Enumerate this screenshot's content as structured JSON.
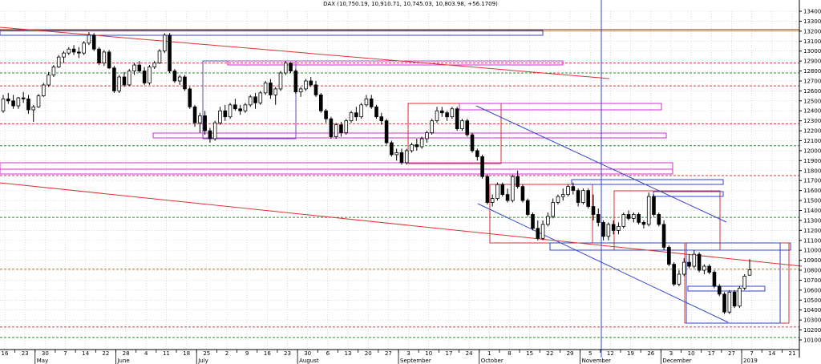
{
  "chart_data": {
    "type": "candlestick",
    "title": "DAX (10,750.19, 10,910.71, 10,745.03, 10,803.98, +56.1709)",
    "ylim": [
      10000,
      13450
    ],
    "y_ticks": [
      10100,
      10200,
      10300,
      10400,
      10500,
      10600,
      10700,
      10800,
      10900,
      11000,
      11100,
      11200,
      11300,
      11400,
      11500,
      11600,
      11700,
      11800,
      11900,
      12000,
      12100,
      12200,
      12300,
      12400,
      12500,
      12600,
      12700,
      12800,
      12900,
      13000,
      13100,
      13200,
      13300,
      13400
    ],
    "x_day_labels": [
      "16",
      "23",
      "30",
      "7",
      "14",
      "22",
      "28",
      "4",
      "11",
      "18",
      "25",
      "2",
      "9",
      "16",
      "23",
      "30",
      "6",
      "13",
      "20",
      "27",
      "3",
      "10",
      "17",
      "24",
      "1",
      "8",
      "15",
      "22",
      "29",
      "5",
      "12",
      "19",
      "26",
      "3",
      "10",
      "17",
      "27",
      "7",
      "14",
      "21"
    ],
    "x_month_labels": [
      "May",
      "June",
      "July",
      "August",
      "September",
      "October",
      "November",
      "December",
      "2019"
    ],
    "grid": "dotted",
    "horizontal_levels": [
      {
        "y": 13215,
        "color": "#7a3a1e"
      },
      {
        "y": 13200,
        "color": "#d4a84e"
      },
      {
        "y": 12880,
        "color": "#d43a3a"
      },
      {
        "y": 12780,
        "color": "#2e8b2e"
      },
      {
        "y": 12650,
        "color": "#d43a3a"
      },
      {
        "y": 12270,
        "color": "#d43a3a"
      },
      {
        "y": 12050,
        "color": "#2e8b2e"
      },
      {
        "y": 11750,
        "color": "#d43a3a"
      },
      {
        "y": 11330,
        "color": "#2e8b2e"
      },
      {
        "y": 10810,
        "color": "#c2741a"
      },
      {
        "y": 10230,
        "color": "#d43a3a"
      },
      {
        "y": 10125,
        "color": "#2e8b2e"
      }
    ],
    "candles": [
      {
        "o": 12400,
        "h": 12560,
        "l": 12380,
        "c": 12520
      },
      {
        "o": 12520,
        "h": 12580,
        "l": 12470,
        "c": 12500
      },
      {
        "o": 12500,
        "h": 12560,
        "l": 12420,
        "c": 12450
      },
      {
        "o": 12450,
        "h": 12540,
        "l": 12420,
        "c": 12530
      },
      {
        "o": 12530,
        "h": 12590,
        "l": 12480,
        "c": 12520
      },
      {
        "o": 12520,
        "h": 12560,
        "l": 12370,
        "c": 12410
      },
      {
        "o": 12410,
        "h": 12460,
        "l": 12290,
        "c": 12440
      },
      {
        "o": 12440,
        "h": 12570,
        "l": 12430,
        "c": 12550
      },
      {
        "o": 12550,
        "h": 12680,
        "l": 12540,
        "c": 12660
      },
      {
        "o": 12660,
        "h": 12790,
        "l": 12640,
        "c": 12760
      },
      {
        "o": 12760,
        "h": 12860,
        "l": 12740,
        "c": 12840
      },
      {
        "o": 12840,
        "h": 12960,
        "l": 12830,
        "c": 12940
      },
      {
        "o": 12940,
        "h": 13000,
        "l": 12880,
        "c": 12980
      },
      {
        "o": 12980,
        "h": 13040,
        "l": 12960,
        "c": 13020
      },
      {
        "o": 13020,
        "h": 13060,
        "l": 12960,
        "c": 12990
      },
      {
        "o": 12990,
        "h": 13040,
        "l": 12930,
        "c": 12980
      },
      {
        "o": 12980,
        "h": 13100,
        "l": 12960,
        "c": 13080
      },
      {
        "o": 13080,
        "h": 13190,
        "l": 13060,
        "c": 13160
      },
      {
        "o": 13160,
        "h": 13180,
        "l": 13000,
        "c": 13020
      },
      {
        "o": 13020,
        "h": 13040,
        "l": 12860,
        "c": 12880
      },
      {
        "o": 12880,
        "h": 13010,
        "l": 12850,
        "c": 12990
      },
      {
        "o": 12990,
        "h": 13010,
        "l": 12820,
        "c": 12830
      },
      {
        "o": 12830,
        "h": 12850,
        "l": 12580,
        "c": 12600
      },
      {
        "o": 12600,
        "h": 12760,
        "l": 12580,
        "c": 12740
      },
      {
        "o": 12740,
        "h": 12790,
        "l": 12640,
        "c": 12660
      },
      {
        "o": 12660,
        "h": 12820,
        "l": 12650,
        "c": 12800
      },
      {
        "o": 12800,
        "h": 12880,
        "l": 12760,
        "c": 12860
      },
      {
        "o": 12860,
        "h": 12900,
        "l": 12780,
        "c": 12800
      },
      {
        "o": 12800,
        "h": 12840,
        "l": 12660,
        "c": 12680
      },
      {
        "o": 12680,
        "h": 12860,
        "l": 12660,
        "c": 12840
      },
      {
        "o": 12840,
        "h": 12900,
        "l": 12820,
        "c": 12880
      },
      {
        "o": 12880,
        "h": 13020,
        "l": 12870,
        "c": 13000
      },
      {
        "o": 13000,
        "h": 13180,
        "l": 12980,
        "c": 13160
      },
      {
        "o": 13160,
        "h": 13180,
        "l": 12780,
        "c": 12800
      },
      {
        "o": 12800,
        "h": 12820,
        "l": 12680,
        "c": 12700
      },
      {
        "o": 12700,
        "h": 12760,
        "l": 12660,
        "c": 12740
      },
      {
        "o": 12740,
        "h": 12760,
        "l": 12600,
        "c": 12620
      },
      {
        "o": 12620,
        "h": 12640,
        "l": 12420,
        "c": 12440
      },
      {
        "o": 12440,
        "h": 12460,
        "l": 12240,
        "c": 12280
      },
      {
        "o": 12280,
        "h": 12380,
        "l": 12180,
        "c": 12350
      },
      {
        "o": 12350,
        "h": 12400,
        "l": 12160,
        "c": 12200
      },
      {
        "o": 12200,
        "h": 12230,
        "l": 12080,
        "c": 12120
      },
      {
        "o": 12120,
        "h": 12300,
        "l": 12100,
        "c": 12280
      },
      {
        "o": 12280,
        "h": 12440,
        "l": 12260,
        "c": 12400
      },
      {
        "o": 12400,
        "h": 12460,
        "l": 12300,
        "c": 12340
      },
      {
        "o": 12340,
        "h": 12480,
        "l": 12320,
        "c": 12460
      },
      {
        "o": 12460,
        "h": 12520,
        "l": 12400,
        "c": 12420
      },
      {
        "o": 12420,
        "h": 12460,
        "l": 12360,
        "c": 12400
      },
      {
        "o": 12400,
        "h": 12480,
        "l": 12380,
        "c": 12460
      },
      {
        "o": 12460,
        "h": 12560,
        "l": 12440,
        "c": 12540
      },
      {
        "o": 12540,
        "h": 12580,
        "l": 12420,
        "c": 12480
      },
      {
        "o": 12480,
        "h": 12600,
        "l": 12460,
        "c": 12580
      },
      {
        "o": 12580,
        "h": 12700,
        "l": 12560,
        "c": 12680
      },
      {
        "o": 12680,
        "h": 12720,
        "l": 12520,
        "c": 12560
      },
      {
        "o": 12560,
        "h": 12640,
        "l": 12460,
        "c": 12620
      },
      {
        "o": 12620,
        "h": 12800,
        "l": 12600,
        "c": 12780
      },
      {
        "o": 12780,
        "h": 12900,
        "l": 12760,
        "c": 12880
      },
      {
        "o": 12880,
        "h": 12890,
        "l": 12780,
        "c": 12800
      },
      {
        "o": 12800,
        "h": 12820,
        "l": 12570,
        "c": 12590
      },
      {
        "o": 12590,
        "h": 12640,
        "l": 12540,
        "c": 12620
      },
      {
        "o": 12620,
        "h": 12720,
        "l": 12600,
        "c": 12700
      },
      {
        "o": 12700,
        "h": 12740,
        "l": 12640,
        "c": 12660
      },
      {
        "o": 12660,
        "h": 12700,
        "l": 12540,
        "c": 12560
      },
      {
        "o": 12560,
        "h": 12580,
        "l": 12380,
        "c": 12400
      },
      {
        "o": 12400,
        "h": 12420,
        "l": 12280,
        "c": 12320
      },
      {
        "o": 12320,
        "h": 12340,
        "l": 12120,
        "c": 12140
      },
      {
        "o": 12140,
        "h": 12280,
        "l": 12120,
        "c": 12260
      },
      {
        "o": 12260,
        "h": 12290,
        "l": 12140,
        "c": 12180
      },
      {
        "o": 12180,
        "h": 12320,
        "l": 12160,
        "c": 12300
      },
      {
        "o": 12300,
        "h": 12400,
        "l": 12280,
        "c": 12380
      },
      {
        "o": 12380,
        "h": 12440,
        "l": 12300,
        "c": 12340
      },
      {
        "o": 12340,
        "h": 12480,
        "l": 12320,
        "c": 12460
      },
      {
        "o": 12460,
        "h": 12560,
        "l": 12440,
        "c": 12520
      },
      {
        "o": 12520,
        "h": 12560,
        "l": 12420,
        "c": 12440
      },
      {
        "o": 12440,
        "h": 12460,
        "l": 12320,
        "c": 12340
      },
      {
        "o": 12340,
        "h": 12380,
        "l": 12260,
        "c": 12300
      },
      {
        "o": 12300,
        "h": 12320,
        "l": 12060,
        "c": 12080
      },
      {
        "o": 12080,
        "h": 12100,
        "l": 11940,
        "c": 11960
      },
      {
        "o": 11960,
        "h": 12020,
        "l": 11900,
        "c": 11980
      },
      {
        "o": 11980,
        "h": 12020,
        "l": 11860,
        "c": 11880
      },
      {
        "o": 11880,
        "h": 12020,
        "l": 11860,
        "c": 12000
      },
      {
        "o": 12000,
        "h": 12080,
        "l": 11980,
        "c": 12060
      },
      {
        "o": 12060,
        "h": 12120,
        "l": 12000,
        "c": 12040
      },
      {
        "o": 12040,
        "h": 12140,
        "l": 12020,
        "c": 12120
      },
      {
        "o": 12120,
        "h": 12200,
        "l": 12080,
        "c": 12180
      },
      {
        "o": 12180,
        "h": 12320,
        "l": 12160,
        "c": 12300
      },
      {
        "o": 12300,
        "h": 12440,
        "l": 12280,
        "c": 12400
      },
      {
        "o": 12400,
        "h": 12440,
        "l": 12340,
        "c": 12380
      },
      {
        "o": 12380,
        "h": 12400,
        "l": 12300,
        "c": 12340
      },
      {
        "o": 12340,
        "h": 12440,
        "l": 12320,
        "c": 12420
      },
      {
        "o": 12420,
        "h": 12440,
        "l": 12200,
        "c": 12220
      },
      {
        "o": 12220,
        "h": 12320,
        "l": 12200,
        "c": 12300
      },
      {
        "o": 12300,
        "h": 12320,
        "l": 12140,
        "c": 12160
      },
      {
        "o": 12160,
        "h": 12180,
        "l": 11980,
        "c": 12000
      },
      {
        "o": 12000,
        "h": 12020,
        "l": 11900,
        "c": 11940
      },
      {
        "o": 11940,
        "h": 11960,
        "l": 11720,
        "c": 11740
      },
      {
        "o": 11740,
        "h": 11760,
        "l": 11460,
        "c": 11480
      },
      {
        "o": 11480,
        "h": 11560,
        "l": 11440,
        "c": 11520
      },
      {
        "o": 11520,
        "h": 11680,
        "l": 11500,
        "c": 11660
      },
      {
        "o": 11660,
        "h": 11680,
        "l": 11540,
        "c": 11560
      },
      {
        "o": 11560,
        "h": 11620,
        "l": 11480,
        "c": 11500
      },
      {
        "o": 11500,
        "h": 11760,
        "l": 11480,
        "c": 11740
      },
      {
        "o": 11740,
        "h": 11800,
        "l": 11620,
        "c": 11640
      },
      {
        "o": 11640,
        "h": 11660,
        "l": 11480,
        "c": 11500
      },
      {
        "o": 11500,
        "h": 11520,
        "l": 11340,
        "c": 11360
      },
      {
        "o": 11360,
        "h": 11380,
        "l": 11200,
        "c": 11220
      },
      {
        "o": 11220,
        "h": 11300,
        "l": 11100,
        "c": 11120
      },
      {
        "o": 11120,
        "h": 11300,
        "l": 11100,
        "c": 11260
      },
      {
        "o": 11260,
        "h": 11380,
        "l": 11240,
        "c": 11340
      },
      {
        "o": 11340,
        "h": 11520,
        "l": 11320,
        "c": 11480
      },
      {
        "o": 11480,
        "h": 11560,
        "l": 11460,
        "c": 11540
      },
      {
        "o": 11540,
        "h": 11620,
        "l": 11500,
        "c": 11560
      },
      {
        "o": 11560,
        "h": 11660,
        "l": 11540,
        "c": 11640
      },
      {
        "o": 11640,
        "h": 11680,
        "l": 11560,
        "c": 11600
      },
      {
        "o": 11600,
        "h": 11620,
        "l": 11440,
        "c": 11480
      },
      {
        "o": 11480,
        "h": 11620,
        "l": 11460,
        "c": 11600
      },
      {
        "o": 11600,
        "h": 11620,
        "l": 11420,
        "c": 11440
      },
      {
        "o": 11440,
        "h": 11560,
        "l": 11300,
        "c": 11360
      },
      {
        "o": 11360,
        "h": 11420,
        "l": 11240,
        "c": 11280
      },
      {
        "o": 11280,
        "h": 11300,
        "l": 11100,
        "c": 11140
      },
      {
        "o": 11140,
        "h": 11280,
        "l": 11100,
        "c": 11260
      },
      {
        "o": 11260,
        "h": 11300,
        "l": 11160,
        "c": 11200
      },
      {
        "o": 11200,
        "h": 11280,
        "l": 11160,
        "c": 11240
      },
      {
        "o": 11240,
        "h": 11380,
        "l": 11220,
        "c": 11360
      },
      {
        "o": 11360,
        "h": 11400,
        "l": 11300,
        "c": 11320
      },
      {
        "o": 11320,
        "h": 11380,
        "l": 11280,
        "c": 11360
      },
      {
        "o": 11360,
        "h": 11380,
        "l": 11260,
        "c": 11280
      },
      {
        "o": 11280,
        "h": 11300,
        "l": 11220,
        "c": 11260
      },
      {
        "o": 11260,
        "h": 11580,
        "l": 11240,
        "c": 11540
      },
      {
        "o": 11540,
        "h": 11560,
        "l": 11340,
        "c": 11360
      },
      {
        "o": 11360,
        "h": 11380,
        "l": 11240,
        "c": 11260
      },
      {
        "o": 11260,
        "h": 11300,
        "l": 11000,
        "c": 11030
      },
      {
        "o": 11030,
        "h": 11050,
        "l": 10840,
        "c": 10860
      },
      {
        "o": 10860,
        "h": 10880,
        "l": 10640,
        "c": 10660
      },
      {
        "o": 10660,
        "h": 10800,
        "l": 10640,
        "c": 10760
      },
      {
        "o": 10760,
        "h": 10920,
        "l": 10740,
        "c": 10880
      },
      {
        "o": 10880,
        "h": 10960,
        "l": 10820,
        "c": 10840
      },
      {
        "o": 10840,
        "h": 11000,
        "l": 10820,
        "c": 10960
      },
      {
        "o": 10960,
        "h": 10980,
        "l": 10780,
        "c": 10800
      },
      {
        "o": 10800,
        "h": 10860,
        "l": 10760,
        "c": 10840
      },
      {
        "o": 10840,
        "h": 10860,
        "l": 10760,
        "c": 10780
      },
      {
        "o": 10780,
        "h": 10800,
        "l": 10620,
        "c": 10640
      },
      {
        "o": 10640,
        "h": 10660,
        "l": 10540,
        "c": 10560
      },
      {
        "o": 10560,
        "h": 10580,
        "l": 10360,
        "c": 10380
      },
      {
        "o": 10380,
        "h": 10600,
        "l": 10360,
        "c": 10580
      },
      {
        "o": 10580,
        "h": 10600,
        "l": 10420,
        "c": 10440
      },
      {
        "o": 10440,
        "h": 10640,
        "l": 10420,
        "c": 10620
      },
      {
        "o": 10620,
        "h": 10760,
        "l": 10600,
        "c": 10740
      },
      {
        "o": 10750.19,
        "h": 10910.71,
        "l": 10745.03,
        "c": 10803.98
      }
    ]
  }
}
